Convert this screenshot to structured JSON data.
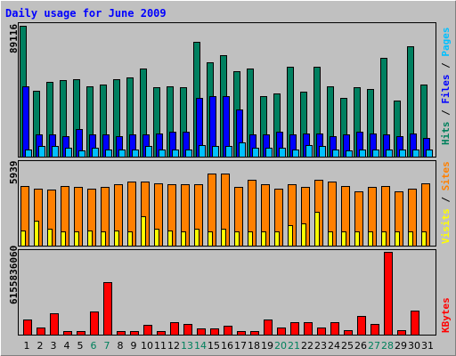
{
  "chart_data": [
    {
      "type": "bar",
      "title": "Daily usage for June 2009",
      "xlabel": "",
      "ylabel": "Pages / Files / Hits",
      "ymax_label": "89116",
      "ylim": [
        0,
        89116
      ],
      "categories": [
        "1",
        "2",
        "3",
        "4",
        "5",
        "6",
        "7",
        "8",
        "9",
        "10",
        "11",
        "12",
        "13",
        "14",
        "15",
        "16",
        "17",
        "18",
        "19",
        "20",
        "21",
        "22",
        "23",
        "24",
        "25",
        "26",
        "27",
        "28",
        "29",
        "30",
        "31"
      ],
      "weekend_days": [
        "6",
        "7",
        "13",
        "14",
        "20",
        "21",
        "27",
        "28"
      ],
      "legend": [
        {
          "label": "Hits",
          "color": "#00805c"
        },
        {
          "label": "Files",
          "color": "#0000ff"
        },
        {
          "label": "Pages",
          "color": "#00c0ff"
        }
      ],
      "series": [
        {
          "name": "Hits",
          "color": "#008060",
          "values": [
            89116,
            45000,
            51000,
            52000,
            53000,
            48000,
            49000,
            53000,
            54000,
            60000,
            47000,
            48000,
            47000,
            78000,
            64000,
            69000,
            58000,
            60000,
            41000,
            43000,
            61000,
            44000,
            61000,
            48000,
            40000,
            47000,
            46000,
            67000,
            38000,
            75000,
            49000
          ]
        },
        {
          "name": "Files",
          "color": "#0000ff",
          "values": [
            48000,
            15000,
            15000,
            14000,
            19000,
            15000,
            15000,
            14000,
            15000,
            15000,
            16000,
            17000,
            17000,
            40000,
            41000,
            41000,
            32000,
            15000,
            15000,
            17000,
            15000,
            16000,
            16000,
            14000,
            15000,
            17000,
            16000,
            15000,
            14000,
            16000,
            13000
          ]
        },
        {
          "name": "Pages",
          "color": "#00c0ff",
          "values": [
            5000,
            7000,
            7000,
            6000,
            4000,
            6000,
            5000,
            5000,
            5000,
            7000,
            5000,
            5000,
            5000,
            8000,
            7000,
            7000,
            10000,
            6000,
            6000,
            6000,
            5000,
            8000,
            7000,
            5000,
            4000,
            5000,
            5000,
            5000,
            5000,
            5000,
            5000
          ]
        }
      ]
    },
    {
      "type": "bar",
      "ylabel": "Sites / Visits",
      "ymax_label": "5939",
      "ylim": [
        0,
        5939
      ],
      "legend": [
        {
          "label": "Visits",
          "color": "#ffff00"
        },
        {
          "label": "Sites",
          "color": "#ff8000"
        }
      ],
      "series": [
        {
          "name": "Sites",
          "color": "#ff8000",
          "values": [
            4300,
            4100,
            4000,
            4300,
            4200,
            4100,
            4200,
            4400,
            4600,
            4600,
            4500,
            4400,
            4400,
            4400,
            5200,
            5200,
            4200,
            4700,
            4400,
            4100,
            4400,
            4200,
            4700,
            4600,
            4300,
            3900,
            4200,
            4300,
            3900,
            4100,
            4500
          ]
        },
        {
          "name": "Visits",
          "color": "#ffff00",
          "values": [
            1100,
            1800,
            1200,
            1000,
            1000,
            1100,
            1000,
            1100,
            1000,
            2100,
            1200,
            1100,
            1000,
            1200,
            1000,
            1200,
            1000,
            1000,
            1000,
            1000,
            1500,
            1600,
            2400,
            1000,
            1000,
            1000,
            1000,
            1000,
            1000,
            1000,
            1000
          ]
        }
      ]
    },
    {
      "type": "bar",
      "ylabel": "KBytes",
      "ymax_label": "6155836060",
      "ylim": [
        0,
        6155836060
      ],
      "legend": [
        {
          "label": "KBytes",
          "color": "#ff0000"
        }
      ],
      "series": [
        {
          "name": "KBytes",
          "color": "#ff0000",
          "values": [
            1100000000,
            500000000,
            1600000000,
            250000000,
            250000000,
            1700000000,
            3900000000,
            250000000,
            250000000,
            750000000,
            250000000,
            950000000,
            800000000,
            450000000,
            450000000,
            650000000,
            250000000,
            250000000,
            1100000000,
            500000000,
            950000000,
            900000000,
            500000000,
            950000000,
            350000000,
            1400000000,
            800000000,
            6155836060,
            350000000,
            1800000000
          ]
        }
      ]
    }
  ],
  "theme": {
    "background": "#c0c0c0",
    "title_color": "#0000ff",
    "weekday_tick_color": "#000000",
    "weekend_tick_color": "#00805c",
    "frame_color": "#000000"
  }
}
